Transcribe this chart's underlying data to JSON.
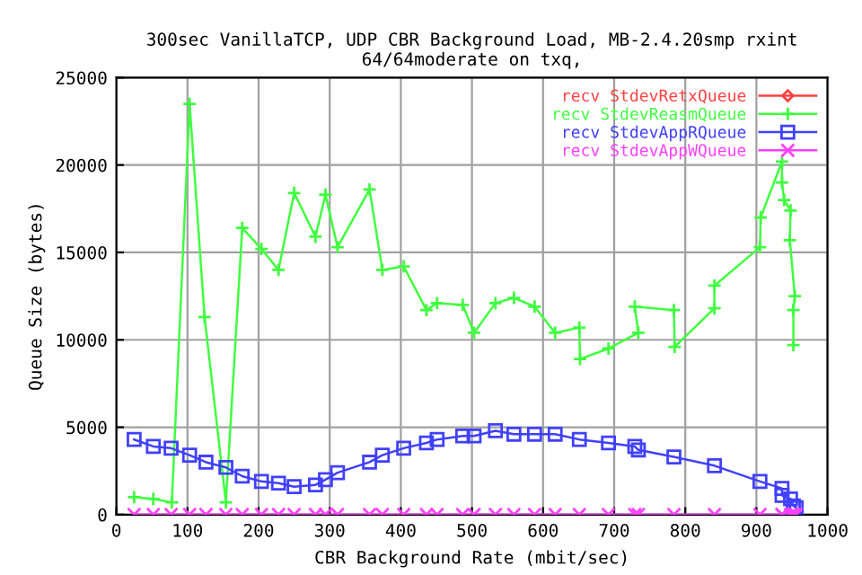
{
  "chart_data": {
    "type": "line",
    "title": "300sec VanillaTCP, UDP CBR Background Load, MB-2.4.20smp rxint 64/64moderate on txq,",
    "xlabel": "CBR Background Rate (mbit/sec)",
    "ylabel": "Queue Size (bytes)",
    "xlim": [
      0,
      1000
    ],
    "xticks": [
      0,
      100,
      200,
      300,
      400,
      500,
      600,
      700,
      800,
      900,
      1000
    ],
    "ylim": [
      0,
      25000
    ],
    "yticks": [
      0,
      5000,
      10000,
      15000,
      20000,
      25000
    ],
    "grid": true,
    "legend": "top right",
    "line_style": "solid",
    "series": [
      {
        "name": "recv StdevRetxQueue",
        "color": "#ff4040",
        "marker": "diamond"
      },
      {
        "name": "recv StdevReasmQueue",
        "color": "#40ff40",
        "marker": "cross",
        "x": [
          25,
          52,
          78,
          103,
          124,
          154,
          177,
          204,
          228,
          250,
          280,
          294,
          311,
          356,
          374,
          404,
          436,
          451,
          487,
          503,
          533,
          559,
          588,
          617,
          651,
          652,
          692,
          734,
          729,
          784,
          785,
          841,
          841,
          905,
          906,
          936,
          936,
          939,
          948,
          947,
          954,
          952,
          952
        ],
        "values": [
          1000,
          900,
          700,
          23500,
          11300,
          700,
          16400,
          15200,
          14000,
          18400,
          15900,
          18300,
          15300,
          18600,
          14000,
          14200,
          11700,
          12100,
          12000,
          10400,
          12100,
          12400,
          11900,
          10400,
          10700,
          8900,
          9500,
          10400,
          11900,
          11700,
          9600,
          11800,
          13100,
          15300,
          17000,
          20200,
          19000,
          18000,
          17400,
          15700,
          12500,
          11700,
          9700
        ]
      },
      {
        "name": "recv StdevAppRQueue",
        "color": "#4040ff",
        "marker": "square",
        "x": [
          25,
          52,
          77,
          103,
          126,
          154,
          177,
          204,
          228,
          250,
          280,
          294,
          311,
          356,
          374,
          404,
          436,
          451,
          487,
          503,
          533,
          559,
          588,
          617,
          651,
          692,
          729,
          734,
          784,
          841,
          905,
          936,
          936,
          948,
          952,
          956
        ],
        "values": [
          4300,
          3900,
          3800,
          3400,
          3000,
          2700,
          2200,
          1900,
          1800,
          1600,
          1700,
          2000,
          2400,
          3000,
          3400,
          3800,
          4100,
          4300,
          4500,
          4500,
          4800,
          4600,
          4600,
          4600,
          4300,
          4100,
          3900,
          3700,
          3300,
          2800,
          1900,
          1500,
          1100,
          900,
          500,
          400
        ]
      },
      {
        "name": "recv StdevAppWQueue",
        "color": "#ff40ff",
        "marker": "x",
        "x": [
          25,
          52,
          77,
          103,
          126,
          154,
          177,
          204,
          228,
          250,
          280,
          294,
          311,
          356,
          374,
          404,
          436,
          451,
          487,
          503,
          533,
          559,
          588,
          617,
          651,
          692,
          729,
          734,
          784,
          841,
          905,
          936,
          936,
          948,
          952,
          956
        ],
        "values": [
          0,
          0,
          0,
          0,
          0,
          0,
          0,
          0,
          0,
          0,
          0,
          0,
          0,
          0,
          0,
          0,
          0,
          0,
          0,
          0,
          0,
          0,
          0,
          0,
          0,
          0,
          0,
          0,
          0,
          0,
          0,
          0,
          0,
          0,
          0,
          0
        ]
      }
    ]
  }
}
